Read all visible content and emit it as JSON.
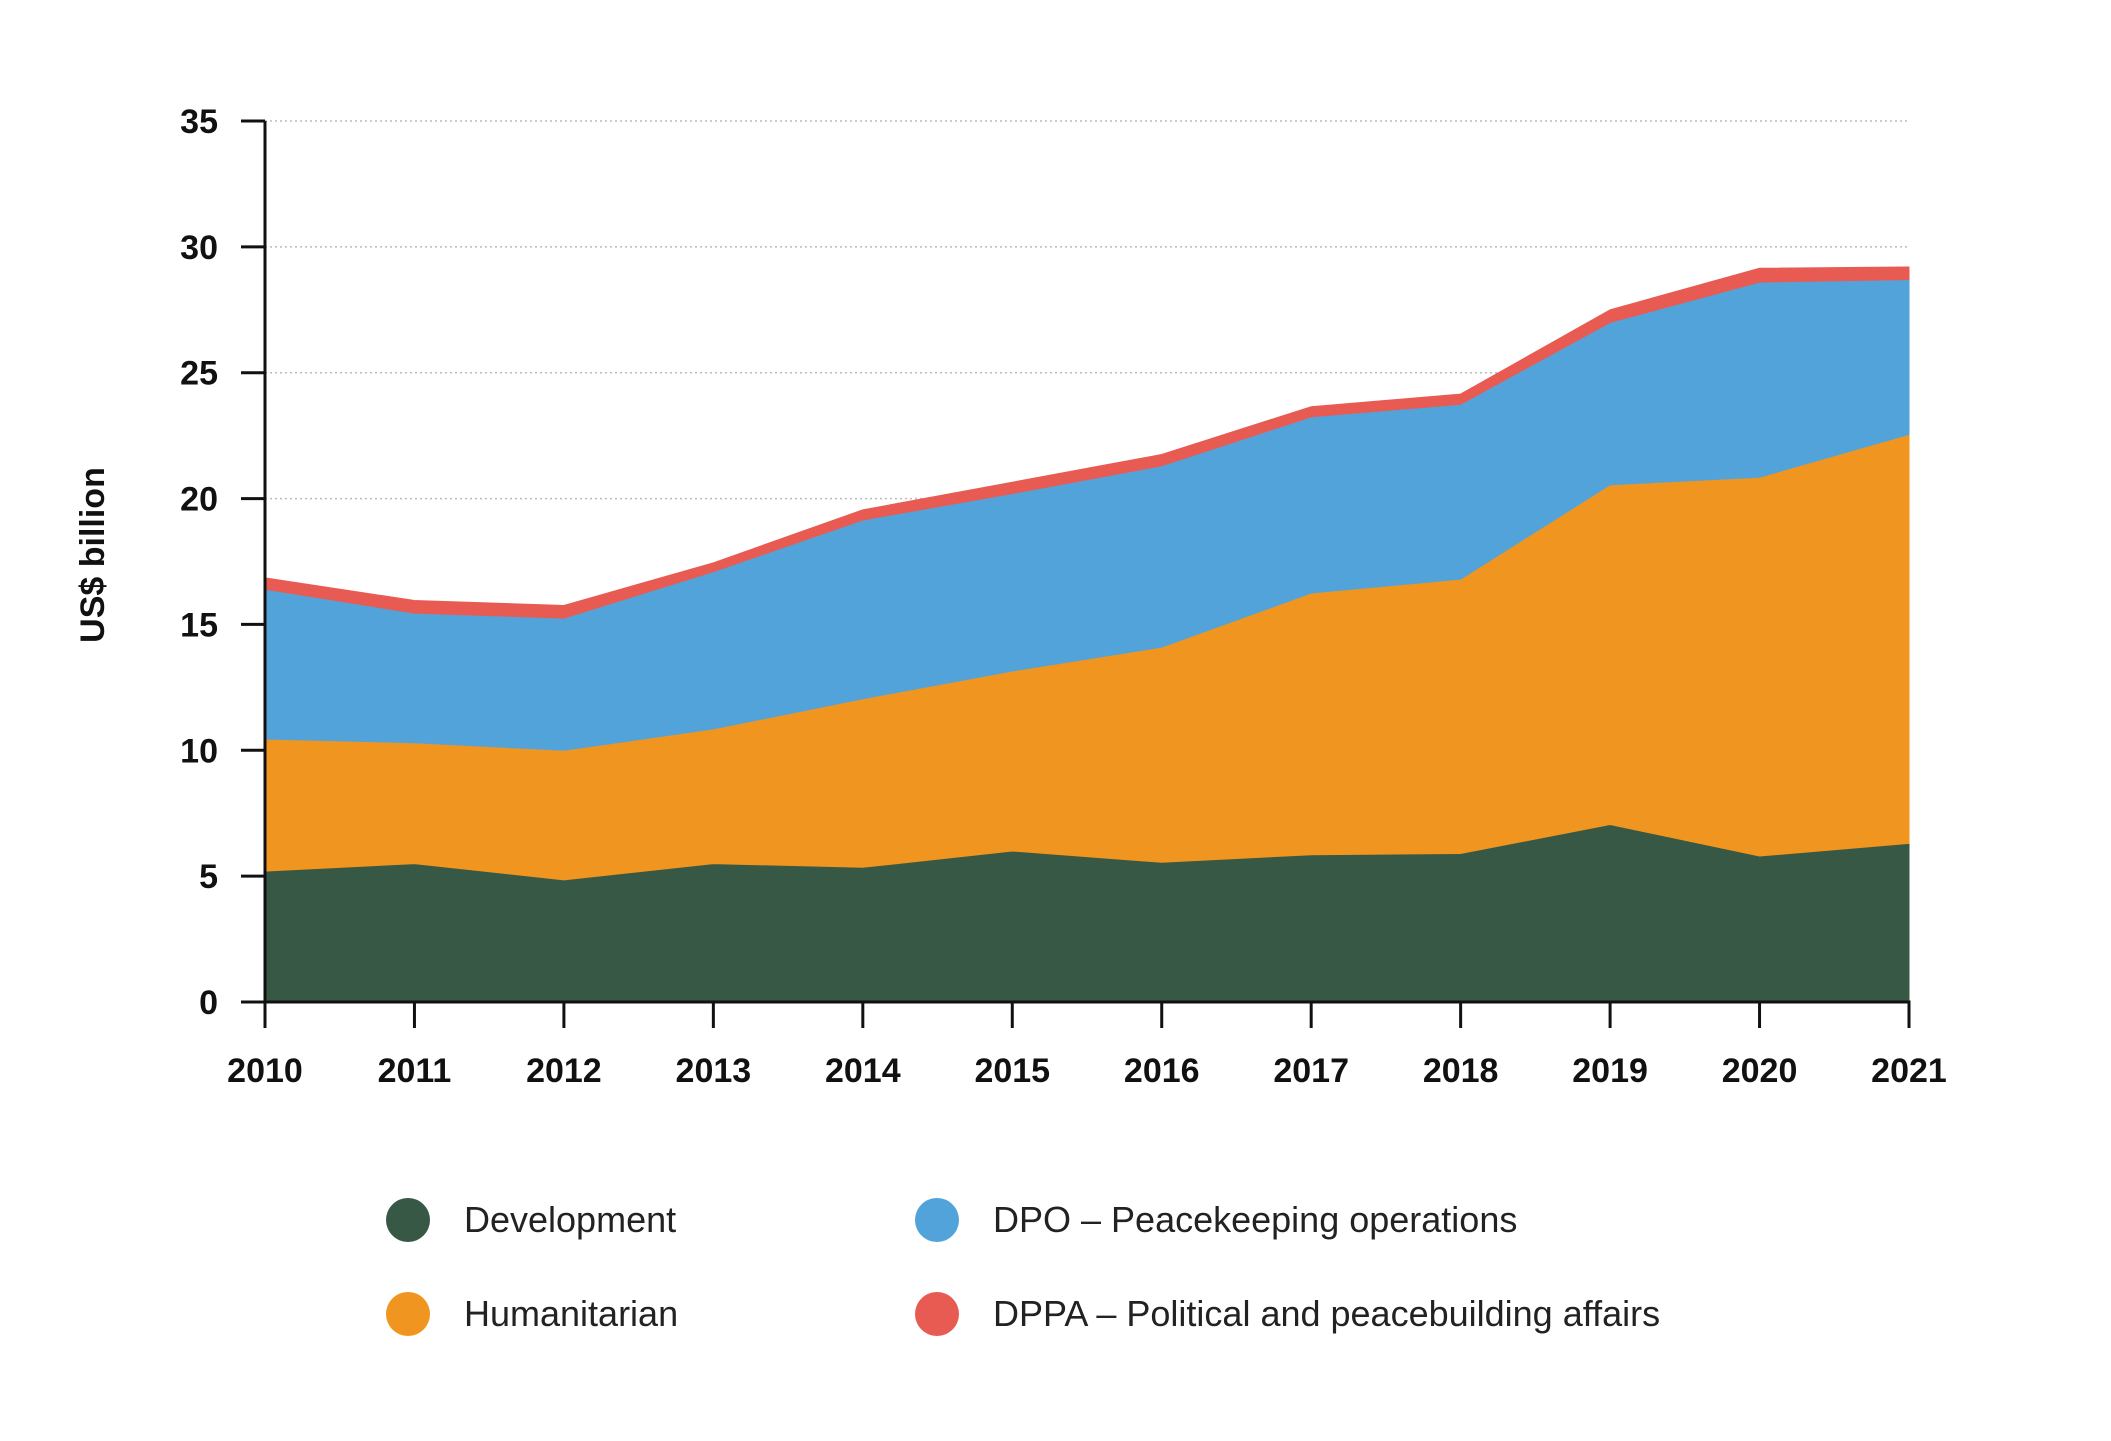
{
  "colors": {
    "development": "#375845",
    "humanitarian": "#F0951F",
    "dpo": "#52A3DA",
    "dppa": "#E85B52",
    "axis": "#111111",
    "grid": "#BBBBBB"
  },
  "chart_data": {
    "type": "area",
    "stacked": true,
    "title": "",
    "xlabel": "",
    "ylabel": "US$ billion",
    "ylim": [
      0,
      35
    ],
    "yticks": [
      "0",
      "5",
      "10",
      "15",
      "20",
      "25",
      "30",
      "35"
    ],
    "grid": "horizontal dotted",
    "legend_position": "bottom",
    "categories": [
      "2010",
      "2011",
      "2012",
      "2013",
      "2014",
      "2015",
      "2016",
      "2017",
      "2018",
      "2019",
      "2020",
      "2021"
    ],
    "series": [
      {
        "name": "Development",
        "color_key": "development",
        "values": [
          5.2,
          5.5,
          4.85,
          5.5,
          5.35,
          6.0,
          5.55,
          5.85,
          5.9,
          7.05,
          5.8,
          6.3
        ]
      },
      {
        "name": "Humanitarian",
        "color_key": "humanitarian",
        "values": [
          5.25,
          4.8,
          5.15,
          5.35,
          6.7,
          7.15,
          8.55,
          10.4,
          10.9,
          13.5,
          15.05,
          16.25
        ]
      },
      {
        "name": "DPO – Peacekeeping operations",
        "color_key": "dpo",
        "values": [
          5.95,
          5.15,
          5.25,
          6.25,
          7.1,
          7.05,
          7.2,
          7.0,
          6.95,
          6.45,
          7.75,
          6.15
        ]
      },
      {
        "name": "DPPA – Political and peacebuilding affairs",
        "color_key": "dppa",
        "values": [
          0.45,
          0.5,
          0.5,
          0.35,
          0.4,
          0.45,
          0.45,
          0.4,
          0.4,
          0.5,
          0.55,
          0.5
        ]
      }
    ]
  },
  "legend": {
    "items": [
      {
        "label": "Development",
        "color_key": "development"
      },
      {
        "label": "Humanitarian",
        "color_key": "humanitarian"
      },
      {
        "label": "DPO – Peacekeeping operations",
        "color_key": "dpo"
      },
      {
        "label": "DPPA – Political and peacebuilding affairs",
        "color_key": "dppa"
      }
    ]
  }
}
